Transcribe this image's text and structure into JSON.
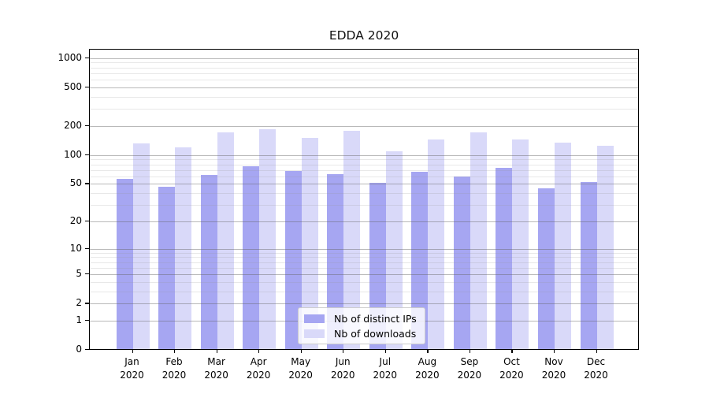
{
  "chart_data": {
    "type": "bar",
    "title": "EDDA 2020",
    "categories": [
      "Jan",
      "Feb",
      "Mar",
      "Apr",
      "May",
      "Jun",
      "Jul",
      "Aug",
      "Sep",
      "Oct",
      "Nov",
      "Dec"
    ],
    "category_year": "2020",
    "series": [
      {
        "name": "Nb of distinct IPs",
        "color": "#a6a6f2",
        "values": [
          54,
          45,
          60,
          73,
          66,
          61,
          49,
          65,
          57,
          71,
          43,
          50
        ]
      },
      {
        "name": "Nb of downloads",
        "color": "#d9d9f9",
        "values": [
          126,
          115,
          166,
          177,
          146,
          171,
          106,
          140,
          165,
          140,
          130,
          120
        ]
      }
    ],
    "y_axis": {
      "scale": "log10(value+1)",
      "tick_values": [
        0,
        1,
        2,
        5,
        10,
        20,
        50,
        100,
        200,
        500,
        1000
      ],
      "tick_labels": [
        "0",
        "1",
        "2",
        "5",
        "10",
        "20",
        "50",
        "100",
        "200",
        "500",
        "1000"
      ],
      "minor_gridlines": [
        3,
        4,
        6,
        7,
        8,
        9,
        30,
        40,
        60,
        70,
        80,
        90,
        300,
        400,
        600,
        700,
        800,
        900
      ],
      "range_max": 1200
    },
    "legend": {
      "position": "bottom-center"
    },
    "grid": "on"
  },
  "colors": {
    "background": "#ffffff",
    "axis": "#000000",
    "grid_major": "#b0b0b0",
    "grid_minor": "#e6e6e6",
    "bar_distinct_ips": "#a6a6f2",
    "bar_downloads": "#d9d9f9"
  }
}
